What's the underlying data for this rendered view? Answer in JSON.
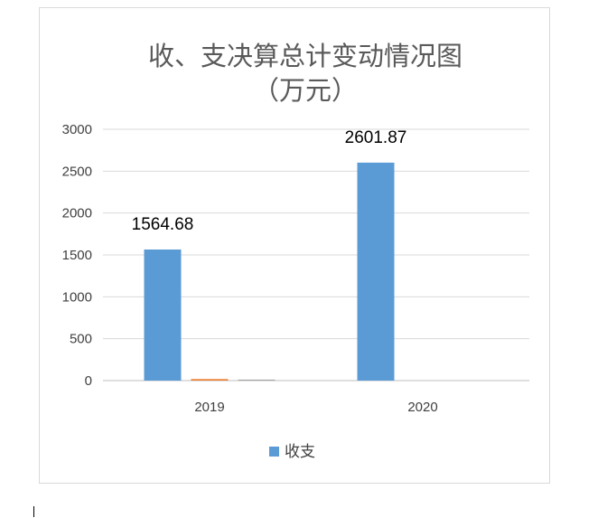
{
  "chart_data": {
    "type": "bar",
    "title_line1": "收、支决算总计变动情况图",
    "title_line2": "（万元）",
    "categories": [
      "2019",
      "2020"
    ],
    "series": [
      {
        "name": "收支",
        "values": [
          1564.68,
          2601.87
        ],
        "color": "#5b9bd5",
        "data_labels": [
          "1564.68",
          "2601.87"
        ]
      },
      {
        "values": [
          18,
          0
        ],
        "color": "#ed7d31"
      },
      {
        "values": [
          12,
          0
        ],
        "color": "#a5a5a5"
      }
    ],
    "ylim": [
      0,
      3000
    ],
    "yticks": [
      0,
      500,
      1000,
      1500,
      2000,
      2500,
      3000
    ],
    "grid": true,
    "legend_position": "bottom",
    "legend": [
      {
        "label": "收支",
        "color": "#5b9bd5"
      }
    ]
  }
}
